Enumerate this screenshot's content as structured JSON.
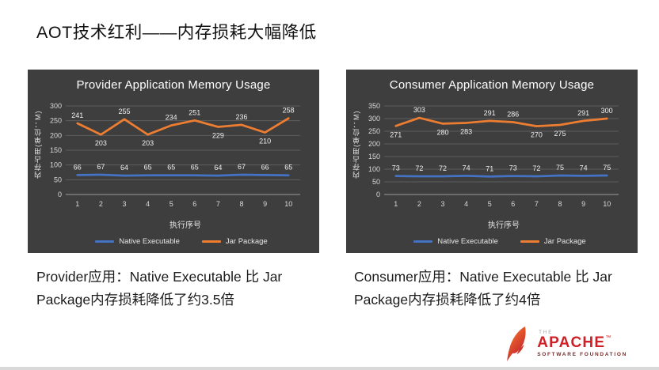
{
  "slide": {
    "title": "AOT技术红利——内存损耗大幅降低"
  },
  "chart_data": [
    {
      "type": "line",
      "title": "Provider Application Memory Usage",
      "xlabel": "执行序号",
      "ylabel": "内存占用(单位：M)",
      "categories": [
        "1",
        "2",
        "3",
        "4",
        "5",
        "6",
        "7",
        "8",
        "9",
        "10"
      ],
      "ylim": [
        0,
        300
      ],
      "ytick_step": 50,
      "grid": "horizontal",
      "legend_position": "bottom",
      "series": [
        {
          "name": "Native Executable",
          "color": "#4472c4",
          "label_position": "above",
          "values": [
            66,
            67,
            64,
            65,
            65,
            65,
            64,
            67,
            66,
            65
          ]
        },
        {
          "name": "Jar Package",
          "color": "#ed7d31",
          "label_position": "auto",
          "values": [
            241,
            203,
            255,
            203,
            234,
            251,
            229,
            236,
            210,
            258
          ]
        }
      ]
    },
    {
      "type": "line",
      "title": "Consumer Application Memory Usage",
      "xlabel": "执行序号",
      "ylabel": "内存占用(单位：M)",
      "categories": [
        "1",
        "2",
        "3",
        "4",
        "5",
        "6",
        "7",
        "8",
        "9",
        "10"
      ],
      "ylim": [
        0,
        350
      ],
      "ytick_step": 50,
      "grid": "horizontal",
      "legend_position": "bottom",
      "series": [
        {
          "name": "Native Executable",
          "color": "#4472c4",
          "label_position": "above",
          "values": [
            73,
            72,
            72,
            74,
            71,
            73,
            72,
            75,
            74,
            75
          ]
        },
        {
          "name": "Jar Package",
          "color": "#ed7d31",
          "label_position": "auto",
          "values": [
            271,
            303,
            280,
            283,
            291,
            286,
            270,
            275,
            291,
            300
          ]
        }
      ]
    }
  ],
  "captions": [
    "Provider应用：Native Executable 比 Jar Package内存损耗降低了约3.5倍",
    "Consumer应用：Native Executable 比 Jar Package内存损耗降低了约4倍"
  ],
  "footer": {
    "the": "THE",
    "name": "APACHE",
    "trademark": "™",
    "subtitle": "SOFTWARE FOUNDATION"
  },
  "colors": {
    "panel_background": "#3e3e3e",
    "native_series": "#4472c4",
    "jar_series": "#ed7d31",
    "apache_red": "#ce2127"
  }
}
